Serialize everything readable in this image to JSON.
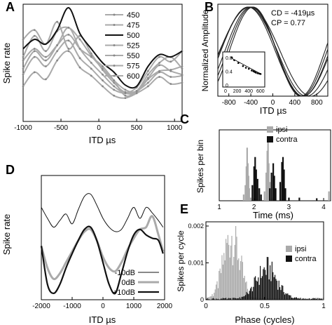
{
  "panels": {
    "A": {
      "letter": "A",
      "ylabel": "Spike rate",
      "xlabel": "ITD µs",
      "xticks": [
        "-1000",
        "-500",
        "0",
        "500",
        "1000"
      ],
      "legend": [
        "450",
        "475",
        "500",
        "525",
        "550",
        "575",
        "600"
      ]
    },
    "B": {
      "letter": "B",
      "ylabel": "Normalized Amplitude",
      "xlabel": "ITD µs",
      "xticks": [
        "-800",
        "-400",
        "0",
        "400",
        "800"
      ],
      "stats": [
        {
          "label": "CD",
          "value": "= -419µs"
        },
        {
          "label": "CP",
          "value": "=  0.77"
        }
      ],
      "inset": {
        "yticks": [
          "0.8",
          "0.4",
          "0"
        ],
        "xticks": [
          "0",
          "200",
          "400",
          "600"
        ]
      }
    },
    "C": {
      "letter": "C",
      "ylabel": "Spikes per bin",
      "xlabel": "Time (ms)",
      "xticks": [
        "1",
        "2",
        "3",
        "4"
      ],
      "legend": [
        "ipsi",
        "contra"
      ]
    },
    "D": {
      "letter": "D",
      "ylabel": "Spike rate",
      "xlabel": "ITD µs",
      "xticks": [
        "-2000",
        "-1000",
        "0",
        "1000",
        "2000"
      ],
      "legend": [
        "-10dB",
        "0dB",
        "+10dB"
      ]
    },
    "E": {
      "letter": "E",
      "ylabel": "Spikes per cycle",
      "xlabel": "Phase (cycles)",
      "xticks": [
        "0",
        "0.5",
        "1"
      ],
      "yticks": [
        "0.002",
        "0.001",
        "0"
      ],
      "legend": [
        "ipsi",
        "contra"
      ]
    }
  },
  "colors": {
    "gray": "#aaaaaa",
    "black": "#111111",
    "thin": "#222222"
  },
  "chart_data": [
    {
      "panel": "A",
      "type": "line",
      "xlabel": "ITD µs",
      "ylabel": "Spike rate",
      "xlim": [
        -1000,
        1100
      ],
      "x": [
        -1000,
        -850,
        -700,
        -550,
        -400,
        -250,
        -100,
        50,
        200,
        350,
        500,
        650,
        800,
        950,
        1100
      ],
      "series": [
        {
          "name": "450",
          "values": [
            0.7,
            0.78,
            0.66,
            0.85,
            0.62,
            0.73,
            0.58,
            0.44,
            0.33,
            0.25,
            0.29,
            0.43,
            0.55,
            0.51,
            0.6
          ]
        },
        {
          "name": "475",
          "values": [
            0.55,
            0.73,
            0.6,
            0.77,
            0.8,
            0.7,
            0.56,
            0.45,
            0.35,
            0.27,
            0.26,
            0.4,
            0.5,
            0.55,
            0.45
          ]
        },
        {
          "name": "500",
          "values": [
            0.62,
            0.7,
            0.66,
            0.78,
            0.97,
            0.75,
            0.62,
            0.5,
            0.42,
            0.31,
            0.3,
            0.47,
            0.57,
            0.55,
            0.6
          ]
        },
        {
          "name": "525",
          "values": [
            0.45,
            0.6,
            0.52,
            0.65,
            0.8,
            0.62,
            0.5,
            0.4,
            0.3,
            0.24,
            0.25,
            0.36,
            0.43,
            0.44,
            0.47
          ]
        },
        {
          "name": "550",
          "values": [
            0.52,
            0.62,
            0.55,
            0.65,
            0.74,
            0.62,
            0.55,
            0.47,
            0.35,
            0.22,
            0.26,
            0.37,
            0.48,
            0.43,
            0.4
          ]
        },
        {
          "name": "575",
          "values": [
            0.4,
            0.55,
            0.47,
            0.6,
            0.69,
            0.54,
            0.45,
            0.35,
            0.27,
            0.24,
            0.26,
            0.33,
            0.42,
            0.38,
            0.39
          ]
        },
        {
          "name": "600",
          "values": [
            0.3,
            0.42,
            0.36,
            0.52,
            0.6,
            0.46,
            0.39,
            0.3,
            0.22,
            0.2,
            0.24,
            0.3,
            0.38,
            0.32,
            0.33
          ]
        }
      ]
    },
    {
      "panel": "B",
      "type": "line",
      "xlabel": "ITD µs",
      "ylabel": "Normalized Amplitude",
      "xlim": [
        -1000,
        1000
      ],
      "ylim": [
        0,
        1
      ],
      "series": [
        {
          "peak": -419,
          "period": 2222
        },
        {
          "peak": -450,
          "period": 2000
        },
        {
          "peak": -400,
          "period": 1905
        },
        {
          "peak": -380,
          "period": 1818
        },
        {
          "peak": -360,
          "period": 1739
        },
        {
          "peak": -440,
          "period": 2105
        }
      ],
      "inset_points": [
        [
          110,
          0.8
        ],
        [
          150,
          0.72
        ],
        [
          220,
          0.64
        ],
        [
          300,
          0.55
        ],
        [
          350,
          0.5
        ],
        [
          400,
          0.47
        ],
        [
          450,
          0.42
        ],
        [
          480,
          0.4
        ],
        [
          500,
          0.38
        ],
        [
          520,
          0.36
        ],
        [
          550,
          0.34
        ],
        [
          580,
          0.33
        ],
        [
          600,
          0.32
        ]
      ]
    },
    {
      "panel": "C",
      "type": "bar",
      "xlabel": "Time (ms)",
      "ylabel": "Spikes per bin",
      "xlim": [
        1,
        4.2
      ],
      "series": [
        {
          "name": "ipsi",
          "bins": [
            [
              1.7,
              0.1
            ],
            [
              1.75,
              0.25
            ],
            [
              1.78,
              0.55
            ],
            [
              1.8,
              0.85
            ],
            [
              1.82,
              0.6
            ],
            [
              1.84,
              0.4
            ],
            [
              1.86,
              0.2
            ],
            [
              1.9,
              0.05
            ],
            [
              2.3,
              0.15
            ],
            [
              2.35,
              0.45
            ],
            [
              2.38,
              0.8
            ],
            [
              2.4,
              0.95
            ],
            [
              2.42,
              0.6
            ],
            [
              2.45,
              0.3
            ],
            [
              2.5,
              0.05
            ],
            [
              4.15,
              0.15
            ]
          ]
        },
        {
          "name": "contra",
          "bins": [
            [
              1.95,
              0.25
            ],
            [
              2.0,
              0.55
            ],
            [
              2.03,
              0.7
            ],
            [
              2.06,
              0.5
            ],
            [
              2.1,
              0.35
            ],
            [
              2.15,
              0.2
            ],
            [
              2.2,
              0.1
            ],
            [
              2.45,
              0.2
            ],
            [
              2.5,
              0.45
            ],
            [
              2.55,
              0.6
            ],
            [
              2.58,
              0.4
            ],
            [
              2.62,
              0.2
            ],
            [
              2.75,
              0.3
            ],
            [
              2.8,
              0.62
            ],
            [
              2.83,
              0.7
            ],
            [
              2.86,
              0.5
            ],
            [
              2.9,
              0.2
            ],
            [
              3.0,
              0.05
            ],
            [
              3.3,
              0.05
            ],
            [
              3.8,
              0.04
            ]
          ]
        }
      ]
    },
    {
      "panel": "D",
      "type": "line",
      "xlabel": "ITD µs",
      "ylabel": "Spike rate",
      "xlim": [
        -2000,
        2000
      ],
      "x": [
        -2000,
        -1800,
        -1600,
        -1400,
        -1200,
        -1000,
        -800,
        -600,
        -400,
        -200,
        0,
        200,
        400,
        600,
        800,
        1000,
        1200,
        1400,
        1600,
        1800,
        1950
      ],
      "series": [
        {
          "name": "-10dB",
          "values": [
            0.8,
            0.7,
            0.62,
            0.68,
            0.74,
            0.65,
            0.78,
            0.9,
            0.92,
            0.82,
            0.7,
            0.62,
            0.58,
            0.6,
            0.7,
            0.8,
            0.7,
            0.8,
            0.75,
            0.68,
            0.62
          ]
        },
        {
          "name": "0dB",
          "values": [
            0.45,
            0.25,
            0.15,
            0.2,
            0.3,
            0.4,
            0.5,
            0.58,
            0.6,
            0.5,
            0.35,
            0.25,
            0.22,
            0.3,
            0.42,
            0.52,
            0.6,
            0.62,
            0.72,
            0.55,
            0.4
          ]
        },
        {
          "name": "+10dB",
          "values": [
            0.45,
            0.1,
            0.02,
            0.1,
            0.25,
            0.38,
            0.5,
            0.6,
            0.62,
            0.5,
            0.3,
            0.1,
            0.02,
            0.2,
            0.4,
            0.55,
            0.6,
            0.55,
            0.52,
            0.5,
            0.38
          ]
        }
      ]
    },
    {
      "panel": "E",
      "type": "bar",
      "xlabel": "Phase (cycles)",
      "ylabel": "Spikes per cycle",
      "xlim": [
        0,
        1
      ],
      "ylim": [
        0,
        0.002
      ],
      "series": [
        {
          "name": "ipsi",
          "shape": "peak",
          "peak_phase": 0.22,
          "peak_value": 0.0017,
          "width": 0.07
        },
        {
          "name": "contra",
          "shape": "peak",
          "peak_phase": 0.52,
          "peak_value": 0.0008,
          "width": 0.09
        }
      ]
    }
  ]
}
